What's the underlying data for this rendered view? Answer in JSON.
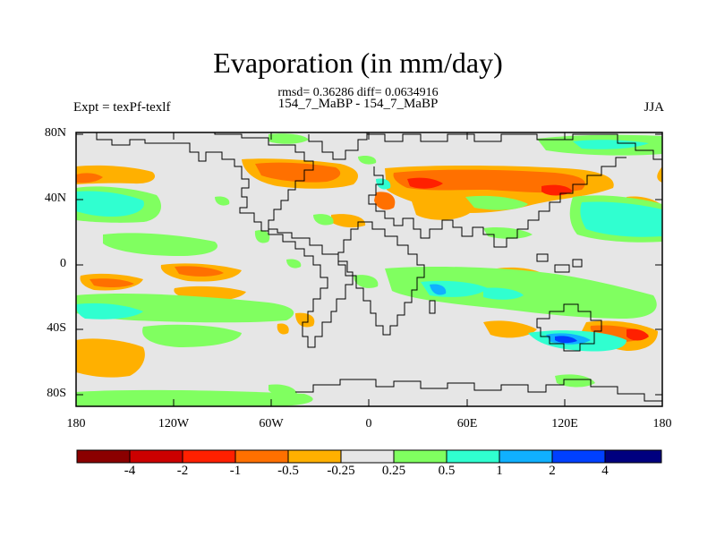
{
  "title": "Evaporation (in mm/day)",
  "subtitle": "rmsd= 0.36286 diff= 0.0634916",
  "left_label": "Expt = texPf-texlf",
  "center_label": "154_7_MaBP - 154_7_MaBP",
  "right_label": "JJA",
  "map": {
    "lat_ticks": [
      "80N",
      "40N",
      "0",
      "40S",
      "80S"
    ],
    "lon_ticks": [
      "180",
      "120W",
      "60W",
      "0",
      "60E",
      "120E",
      "180"
    ],
    "colors": {
      "background": "#e6e6e6",
      "coastline": "#000000"
    }
  },
  "colorbar": {
    "colors": [
      "#8b0000",
      "#cc0000",
      "#ff2000",
      "#ff7000",
      "#ffb000",
      "#e6e6e6",
      "#80ff60",
      "#30ffd0",
      "#10b0ff",
      "#0040ff",
      "#00007f"
    ],
    "labels": [
      "-4",
      "-2",
      "-1",
      "-0.5",
      "-0.25",
      "0.25",
      "0.5",
      "1",
      "2",
      "4"
    ]
  }
}
